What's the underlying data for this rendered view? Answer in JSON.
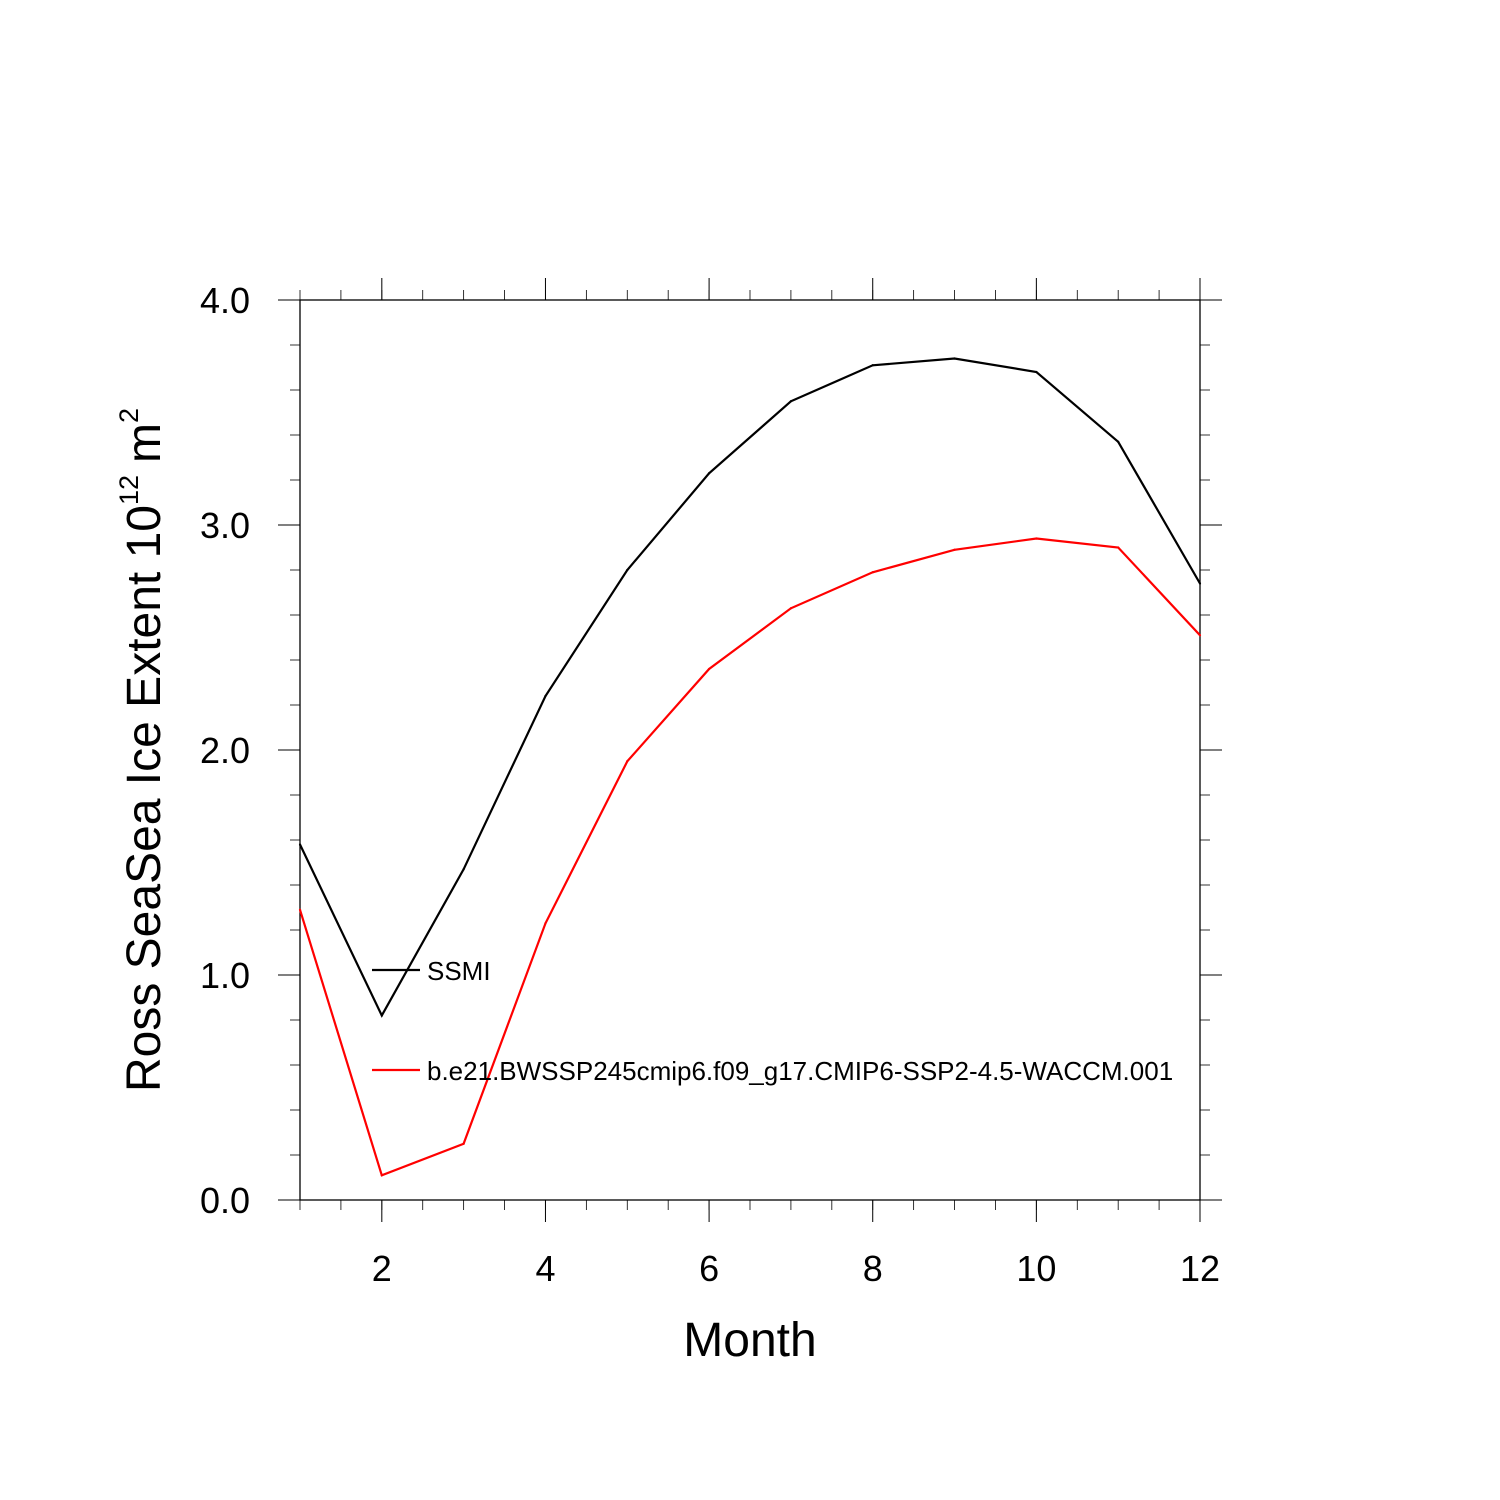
{
  "chart_data": {
    "type": "line",
    "xlabel": "Month",
    "ylabel": {
      "text": "Ross SeaSea Ice Extent 10",
      "exponent": "12",
      "unit": "m",
      "unit_exponent": "2"
    },
    "xlim": [
      1,
      12
    ],
    "ylim": [
      0,
      4
    ],
    "x_ticks": [
      2,
      4,
      6,
      8,
      10,
      12
    ],
    "x_tick_labels": [
      "2",
      "4",
      "6",
      "8",
      "10",
      "12"
    ],
    "y_ticks": [
      0,
      1,
      2,
      3,
      4
    ],
    "y_tick_labels": [
      "0.0",
      "1.0",
      "2.0",
      "3.0",
      "4.0"
    ],
    "x": [
      1,
      2,
      3,
      4,
      5,
      6,
      7,
      8,
      9,
      10,
      11,
      12
    ],
    "series": [
      {
        "name": "SSMI",
        "color": "#000000",
        "values": [
          1.58,
          0.82,
          1.47,
          2.24,
          2.8,
          3.23,
          3.55,
          3.71,
          3.74,
          3.68,
          3.37,
          2.74
        ]
      },
      {
        "name": "b.e21.BWSSP245cmip6.f09_g17.CMIP6-SSP2-4.5-WACCM.001",
        "color": "#ff0000",
        "values": [
          1.29,
          0.11,
          0.25,
          1.23,
          1.95,
          2.36,
          2.63,
          2.79,
          2.89,
          2.94,
          2.9,
          2.51
        ]
      }
    ],
    "legend_placement": "inside-lower-left",
    "grid": false
  }
}
